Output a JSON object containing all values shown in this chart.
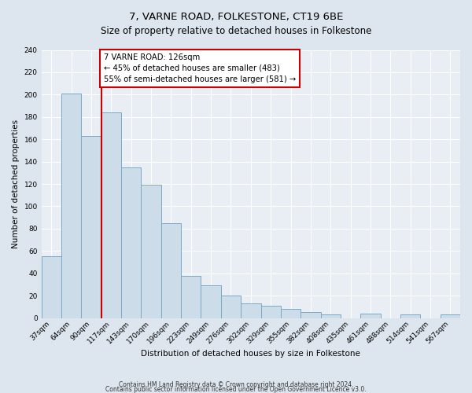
{
  "title": "7, VARNE ROAD, FOLKESTONE, CT19 6BE",
  "subtitle": "Size of property relative to detached houses in Folkestone",
  "xlabel": "Distribution of detached houses by size in Folkestone",
  "ylabel": "Number of detached properties",
  "bin_labels": [
    "37sqm",
    "64sqm",
    "90sqm",
    "117sqm",
    "143sqm",
    "170sqm",
    "196sqm",
    "223sqm",
    "249sqm",
    "276sqm",
    "302sqm",
    "329sqm",
    "355sqm",
    "382sqm",
    "408sqm",
    "435sqm",
    "461sqm",
    "488sqm",
    "514sqm",
    "541sqm",
    "567sqm"
  ],
  "bar_heights": [
    55,
    201,
    163,
    184,
    135,
    119,
    85,
    38,
    29,
    20,
    13,
    11,
    8,
    5,
    3,
    0,
    4,
    0,
    3,
    0,
    3
  ],
  "bar_color": "#ccdce8",
  "bar_edge_color": "#7aaac8",
  "vline_x_idx": 3,
  "vline_color": "#cc0000",
  "annotation_line1": "7 VARNE ROAD: 126sqm",
  "annotation_line2": "← 45% of detached houses are smaller (483)",
  "annotation_line3": "55% of semi-detached houses are larger (581) →",
  "annotation_box_color": "#ffffff",
  "annotation_box_edge": "#cc0000",
  "bg_color": "#dde6ee",
  "plot_bg": "#e8eef4",
  "footer1": "Contains HM Land Registry data © Crown copyright and database right 2024.",
  "footer2": "Contains public sector information licensed under the Open Government Licence v3.0.",
  "ylim": [
    0,
    240
  ],
  "yticks": [
    0,
    20,
    40,
    60,
    80,
    100,
    120,
    140,
    160,
    180,
    200,
    220,
    240
  ],
  "title_fontsize": 9.5,
  "subtitle_fontsize": 8.5,
  "axis_label_fontsize": 7.5,
  "tick_fontsize": 6.5,
  "annotation_fontsize": 7.2,
  "footer_fontsize": 5.5
}
